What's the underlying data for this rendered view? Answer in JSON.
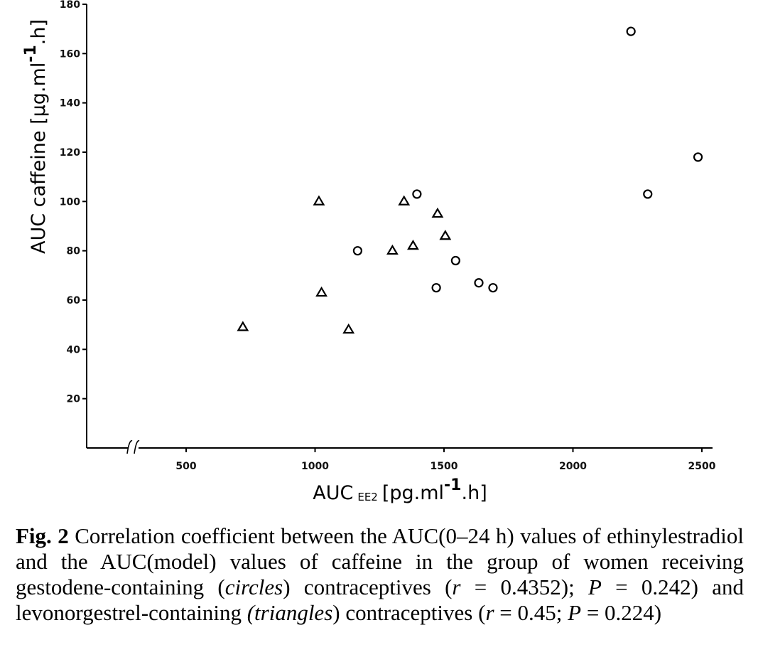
{
  "chart_data": {
    "type": "scatter",
    "xlabel": {
      "main": "AUC",
      "sub": "EE2",
      "units_pre": "[pg.ml",
      "units_sup": "-1",
      "units_post": ".h]"
    },
    "ylabel": {
      "main": "AUC caffeine [µg.ml",
      "units_sup": "-1",
      "units_post": ".h]"
    },
    "x_range": [
      250,
      2500
    ],
    "ylim": [
      0,
      180
    ],
    "x_axis_break": true,
    "x_ticks": [
      500,
      1000,
      1500,
      2000,
      2500
    ],
    "y_ticks": [
      20,
      40,
      60,
      80,
      100,
      120,
      140,
      160,
      180
    ],
    "grid": false,
    "series": [
      {
        "marker": "circle",
        "points": [
          {
            "x": 1165,
            "y": 80
          },
          {
            "x": 1395,
            "y": 103
          },
          {
            "x": 1470,
            "y": 65
          },
          {
            "x": 1545,
            "y": 76
          },
          {
            "x": 1635,
            "y": 67
          },
          {
            "x": 1690,
            "y": 65
          },
          {
            "x": 2225,
            "y": 169
          },
          {
            "x": 2290,
            "y": 103
          },
          {
            "x": 2485,
            "y": 118
          }
        ]
      },
      {
        "marker": "triangle",
        "points": [
          {
            "x": 720,
            "y": 49
          },
          {
            "x": 1015,
            "y": 100
          },
          {
            "x": 1025,
            "y": 63
          },
          {
            "x": 1130,
            "y": 48
          },
          {
            "x": 1300,
            "y": 80
          },
          {
            "x": 1345,
            "y": 100
          },
          {
            "x": 1380,
            "y": 82
          },
          {
            "x": 1475,
            "y": 95
          },
          {
            "x": 1505,
            "y": 86
          }
        ]
      }
    ]
  },
  "caption": {
    "label": "Fig. 2",
    "part1": " Correlation coefficient between the AUC(0–24 h) values of ethinylestradiol and the AUC(model) values of caffeine in the group of women receiving gestodene-containing (",
    "circles": "circles",
    "part2": ") contraceptives (",
    "r1_sym": "r",
    "part3": " = 0.4352); ",
    "p1_sym": "P",
    "part4": " = 0.242) and levonorgestrel-containing ",
    "triangles": "(triangles",
    "part5": ") contraceptives (",
    "r2_sym": "r",
    "part6": " = 0.45; ",
    "p2_sym": "P",
    "part7": " = 0.224)"
  }
}
